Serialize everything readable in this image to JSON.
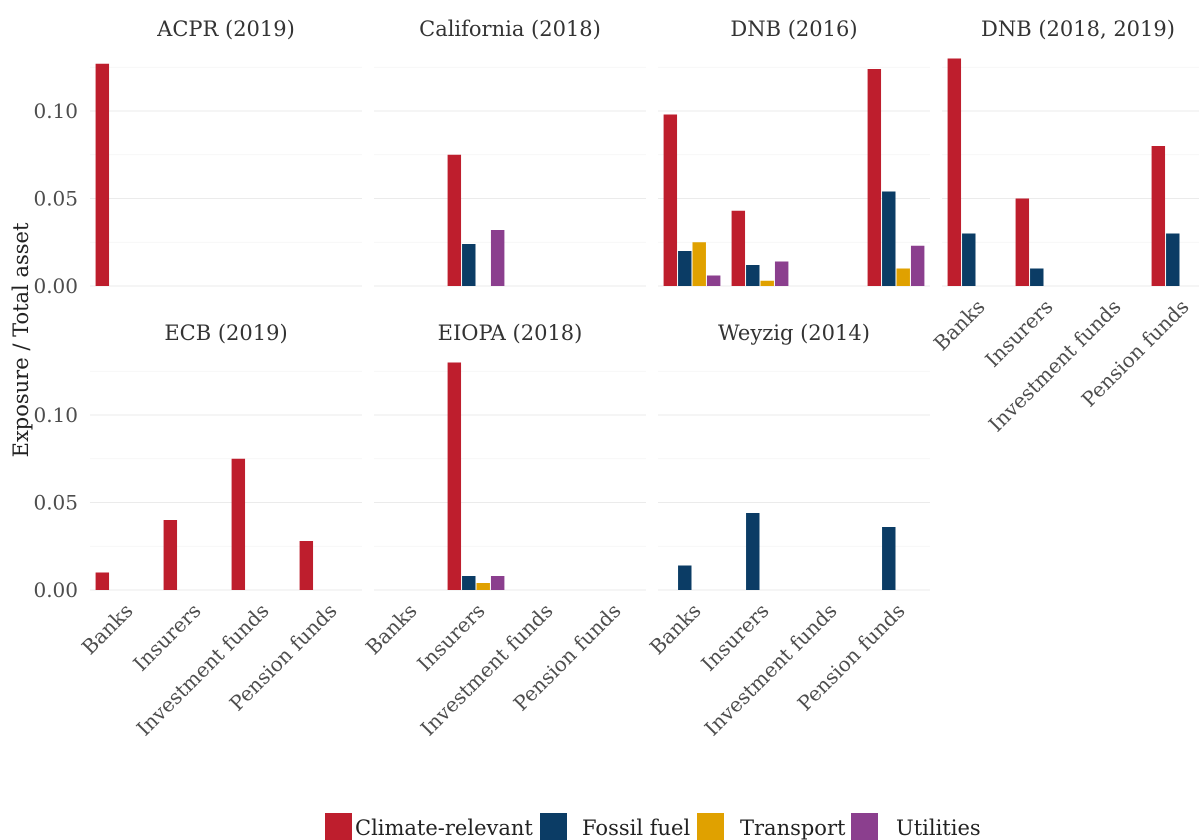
{
  "chart_data": {
    "type": "bar",
    "ylabel": "Exposure / Total asset",
    "categories": [
      "Banks",
      "Insurers",
      "Investment funds",
      "Pension funds"
    ],
    "y_ticks": [
      0.0,
      0.05,
      0.1
    ],
    "y_tick_labels": [
      "0.00",
      "0.05",
      "0.10"
    ],
    "ylim": [
      0,
      0.13
    ],
    "grid": true,
    "legend_position": "bottom",
    "series_names": [
      "Climate-relevant",
      "Fossil fuel",
      "Transport",
      "Utilities"
    ],
    "colors": {
      "Climate-relevant": "#be1e2d",
      "Fossil fuel": "#0b3c65",
      "Transport": "#e0a100",
      "Utilities": "#8b3f8e"
    },
    "panels": [
      {
        "title": "ACPR (2019)",
        "series": [
          {
            "name": "Climate-relevant",
            "values": [
              0.127,
              null,
              null,
              null
            ]
          },
          {
            "name": "Fossil fuel",
            "values": [
              null,
              null,
              null,
              null
            ]
          },
          {
            "name": "Transport",
            "values": [
              null,
              null,
              null,
              null
            ]
          },
          {
            "name": "Utilities",
            "values": [
              null,
              null,
              null,
              null
            ]
          }
        ]
      },
      {
        "title": "California (2018)",
        "series": [
          {
            "name": "Climate-relevant",
            "values": [
              null,
              0.075,
              null,
              null
            ]
          },
          {
            "name": "Fossil fuel",
            "values": [
              null,
              0.024,
              null,
              null
            ]
          },
          {
            "name": "Transport",
            "values": [
              null,
              null,
              null,
              null
            ]
          },
          {
            "name": "Utilities",
            "values": [
              null,
              0.032,
              null,
              null
            ]
          }
        ]
      },
      {
        "title": "DNB (2016)",
        "series": [
          {
            "name": "Climate-relevant",
            "values": [
              0.098,
              0.043,
              null,
              0.124
            ]
          },
          {
            "name": "Fossil fuel",
            "values": [
              0.02,
              0.012,
              null,
              0.054
            ]
          },
          {
            "name": "Transport",
            "values": [
              0.025,
              0.003,
              null,
              0.01
            ]
          },
          {
            "name": "Utilities",
            "values": [
              0.006,
              0.014,
              null,
              0.023
            ]
          }
        ]
      },
      {
        "title": "DNB (2018, 2019)",
        "series": [
          {
            "name": "Climate-relevant",
            "values": [
              0.13,
              0.05,
              null,
              0.08
            ]
          },
          {
            "name": "Fossil fuel",
            "values": [
              0.03,
              0.01,
              null,
              0.03
            ]
          },
          {
            "name": "Transport",
            "values": [
              null,
              null,
              null,
              null
            ]
          },
          {
            "name": "Utilities",
            "values": [
              null,
              null,
              null,
              null
            ]
          }
        ]
      },
      {
        "title": "ECB (2019)",
        "series": [
          {
            "name": "Climate-relevant",
            "values": [
              0.01,
              0.04,
              0.075,
              0.028
            ]
          },
          {
            "name": "Fossil fuel",
            "values": [
              null,
              null,
              null,
              null
            ]
          },
          {
            "name": "Transport",
            "values": [
              null,
              null,
              null,
              null
            ]
          },
          {
            "name": "Utilities",
            "values": [
              null,
              null,
              null,
              null
            ]
          }
        ]
      },
      {
        "title": "EIOPA (2018)",
        "series": [
          {
            "name": "Climate-relevant",
            "values": [
              null,
              0.13,
              null,
              null
            ]
          },
          {
            "name": "Fossil fuel",
            "values": [
              null,
              0.008,
              null,
              null
            ]
          },
          {
            "name": "Transport",
            "values": [
              null,
              0.004,
              null,
              null
            ]
          },
          {
            "name": "Utilities",
            "values": [
              null,
              0.008,
              null,
              null
            ]
          }
        ]
      },
      {
        "title": "Weyzig (2014)",
        "series": [
          {
            "name": "Climate-relevant",
            "values": [
              null,
              null,
              null,
              null
            ]
          },
          {
            "name": "Fossil fuel",
            "values": [
              0.014,
              0.044,
              null,
              0.036
            ]
          },
          {
            "name": "Transport",
            "values": [
              null,
              null,
              null,
              null
            ]
          },
          {
            "name": "Utilities",
            "values": [
              null,
              null,
              null,
              null
            ]
          }
        ]
      }
    ]
  }
}
